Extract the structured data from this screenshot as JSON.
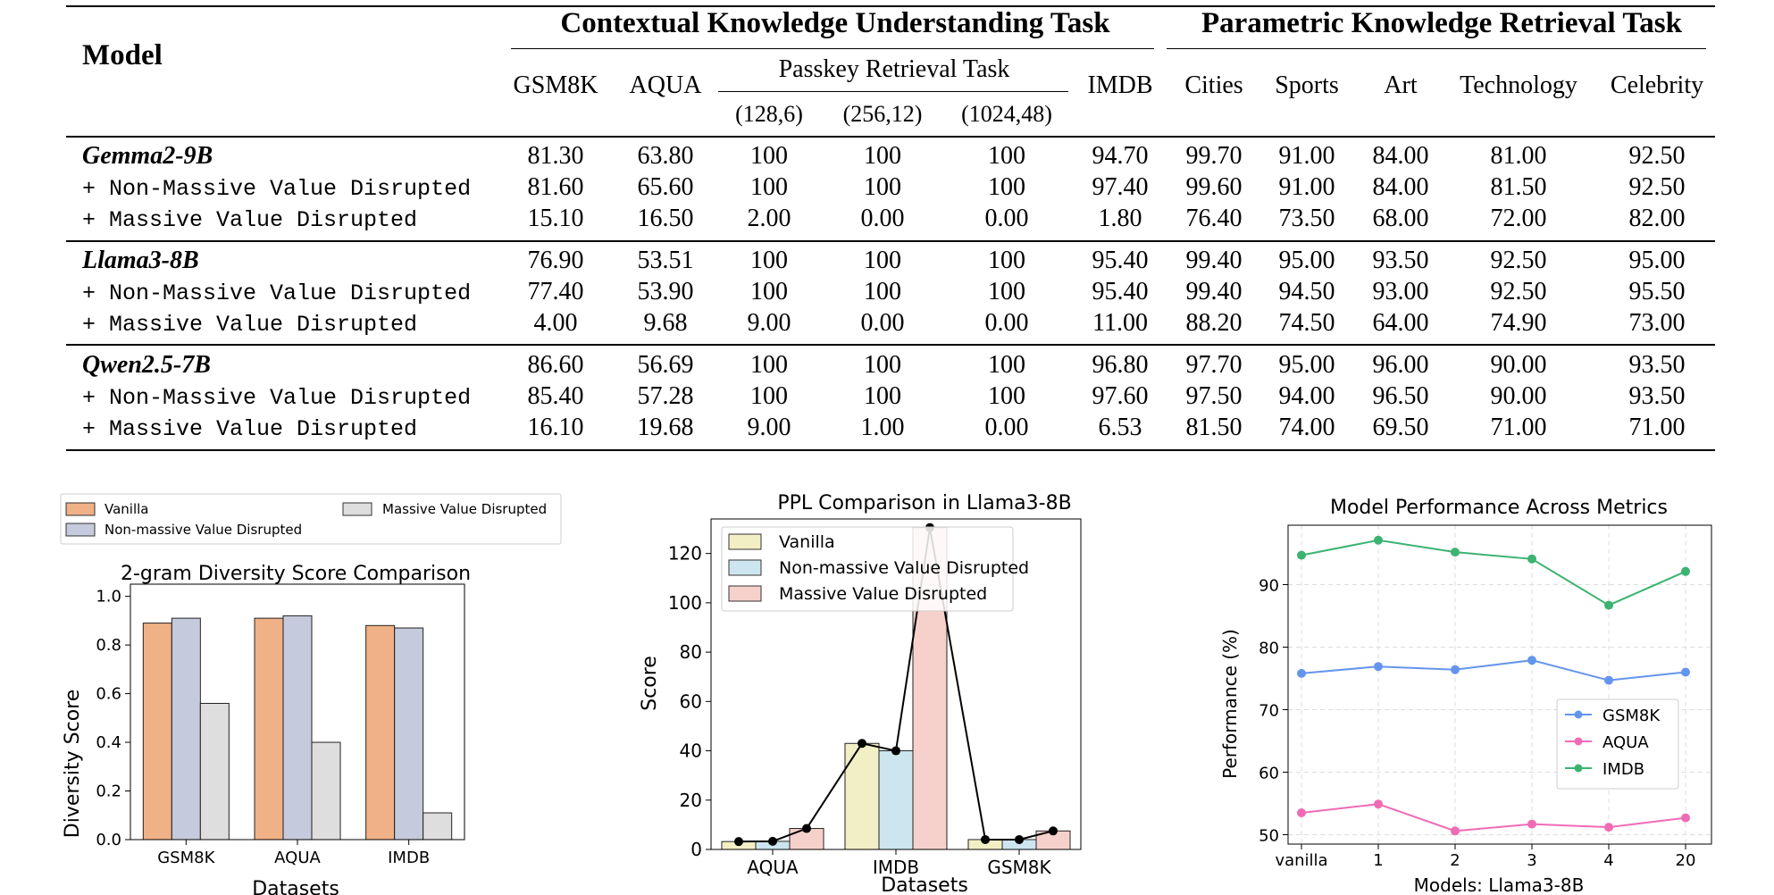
{
  "table": {
    "model_header": "Model",
    "group_headers": {
      "contextual": "Contextual Knowledge Understanding Task",
      "parametric": "Parametric Knowledge Retrieval Task"
    },
    "passkey_header": "Passkey Retrieval Task",
    "columns": [
      "GSM8K",
      "AQUA",
      "(128,6)",
      "(256,12)",
      "(1024,48)",
      "IMDB",
      "Cities",
      "Sports",
      "Art",
      "Technology",
      "Celebrity"
    ],
    "column_labels": {
      "gsm8k": "GSM8K",
      "aqua": "AQUA",
      "p1": "(128,6)",
      "p2": "(256,12)",
      "p3": "(1024,48)",
      "imdb": "IMDB",
      "cities": "Cities",
      "sports": "Sports",
      "art": "Art",
      "technology": "Technology",
      "celebrity": "Celebrity"
    },
    "groups": [
      {
        "model": "Gemma2-9B",
        "rows": [
          {
            "label": "",
            "values": [
              "81.30",
              "63.80",
              "100",
              "100",
              "100",
              "94.70",
              "99.70",
              "91.00",
              "84.00",
              "81.00",
              "92.50"
            ]
          },
          {
            "label": "+ Non-Massive Value Disrupted",
            "values": [
              "81.60",
              "65.60",
              "100",
              "100",
              "100",
              "97.40",
              "99.60",
              "91.00",
              "84.00",
              "81.50",
              "92.50"
            ]
          },
          {
            "label": "+ Massive Value Disrupted",
            "values": [
              "15.10",
              "16.50",
              "2.00",
              "0.00",
              "0.00",
              "1.80",
              "76.40",
              "73.50",
              "68.00",
              "72.00",
              "82.00"
            ]
          }
        ]
      },
      {
        "model": "Llama3-8B",
        "rows": [
          {
            "label": "",
            "values": [
              "76.90",
              "53.51",
              "100",
              "100",
              "100",
              "95.40",
              "99.40",
              "95.00",
              "93.50",
              "92.50",
              "95.00"
            ]
          },
          {
            "label": "+ Non-Massive Value Disrupted",
            "values": [
              "77.40",
              "53.90",
              "100",
              "100",
              "100",
              "95.40",
              "99.40",
              "94.50",
              "93.00",
              "92.50",
              "95.50"
            ]
          },
          {
            "label": "+ Massive Value Disrupted",
            "values": [
              "4.00",
              "9.68",
              "9.00",
              "0.00",
              "0.00",
              "11.00",
              "88.20",
              "74.50",
              "64.00",
              "74.90",
              "73.00"
            ]
          }
        ]
      },
      {
        "model": "Qwen2.5-7B",
        "rows": [
          {
            "label": "",
            "values": [
              "86.60",
              "56.69",
              "100",
              "100",
              "100",
              "96.80",
              "97.70",
              "95.00",
              "96.00",
              "90.00",
              "93.50"
            ]
          },
          {
            "label": "+ Non-Massive Value Disrupted",
            "values": [
              "85.40",
              "57.28",
              "100",
              "100",
              "100",
              "97.60",
              "97.50",
              "94.00",
              "96.50",
              "90.00",
              "93.50"
            ]
          },
          {
            "label": "+ Massive Value Disrupted",
            "values": [
              "16.10",
              "19.68",
              "9.00",
              "1.00",
              "0.00",
              "6.53",
              "81.50",
              "74.00",
              "69.50",
              "71.00",
              "71.00"
            ]
          }
        ]
      }
    ]
  },
  "chart_data": [
    {
      "type": "bar",
      "title": "2-gram Diversity Score Comparison",
      "xlabel": "Datasets",
      "ylabel": "Diversity Score",
      "categories": [
        "GSM8K",
        "AQUA",
        "IMDB"
      ],
      "ylim": [
        0,
        1.05
      ],
      "yticks": [
        "0.0",
        "0.2",
        "0.4",
        "0.6",
        "0.8",
        "1.0"
      ],
      "legend_position": "above-plot",
      "series": [
        {
          "name": "Vanilla",
          "color": "#efb185",
          "values": [
            0.89,
            0.91,
            0.88
          ]
        },
        {
          "name": "Non-massive Value Disrupted",
          "color": "#c5cadc",
          "values": [
            0.91,
            0.92,
            0.87
          ]
        },
        {
          "name": "Massive Value Disrupted",
          "color": "#dedede",
          "values": [
            0.56,
            0.4,
            0.11
          ]
        }
      ]
    },
    {
      "type": "bar",
      "title": "PPL Comparison in Llama3-8B",
      "xlabel": "Datasets",
      "ylabel": "Score",
      "categories": [
        "AQUA",
        "IMDB",
        "GSM8K"
      ],
      "ylim": [
        0,
        134
      ],
      "yticks": [
        "0",
        "20",
        "40",
        "60",
        "80",
        "100",
        "120"
      ],
      "legend_position": "upper-left",
      "series": [
        {
          "name": "Vanilla",
          "color": "#f3efc5",
          "values": [
            3.2,
            43.0,
            4.0
          ]
        },
        {
          "name": "Non-massive Value Disrupted",
          "color": "#cde5ee",
          "values": [
            3.3,
            40.0,
            4.0
          ]
        },
        {
          "name": "Massive Value Disrupted",
          "color": "#f6d1cc",
          "values": [
            8.5,
            130.5,
            7.5
          ]
        }
      ]
    },
    {
      "type": "line",
      "title": "Model Performance Across Metrics",
      "xlabel": "Models: Llama3-8B",
      "ylabel": "Performance (%)",
      "categories": [
        "vanilla",
        "1",
        "2",
        "3",
        "4",
        "20"
      ],
      "ylim": [
        48.5,
        99.5
      ],
      "yticks": [
        "50",
        "60",
        "70",
        "80",
        "90"
      ],
      "grid": true,
      "legend_position": "center-right",
      "series": [
        {
          "name": "GSM8K",
          "color": "#6495ed",
          "values": [
            75.8,
            76.9,
            76.4,
            77.9,
            74.7,
            76.0
          ]
        },
        {
          "name": "AQUA",
          "color": "#f06bb5",
          "values": [
            53.5,
            54.9,
            50.6,
            51.7,
            51.2,
            52.7
          ]
        },
        {
          "name": "IMDB",
          "color": "#3cb371",
          "values": [
            94.7,
            97.1,
            95.2,
            94.1,
            86.7,
            92.1
          ]
        }
      ]
    }
  ]
}
